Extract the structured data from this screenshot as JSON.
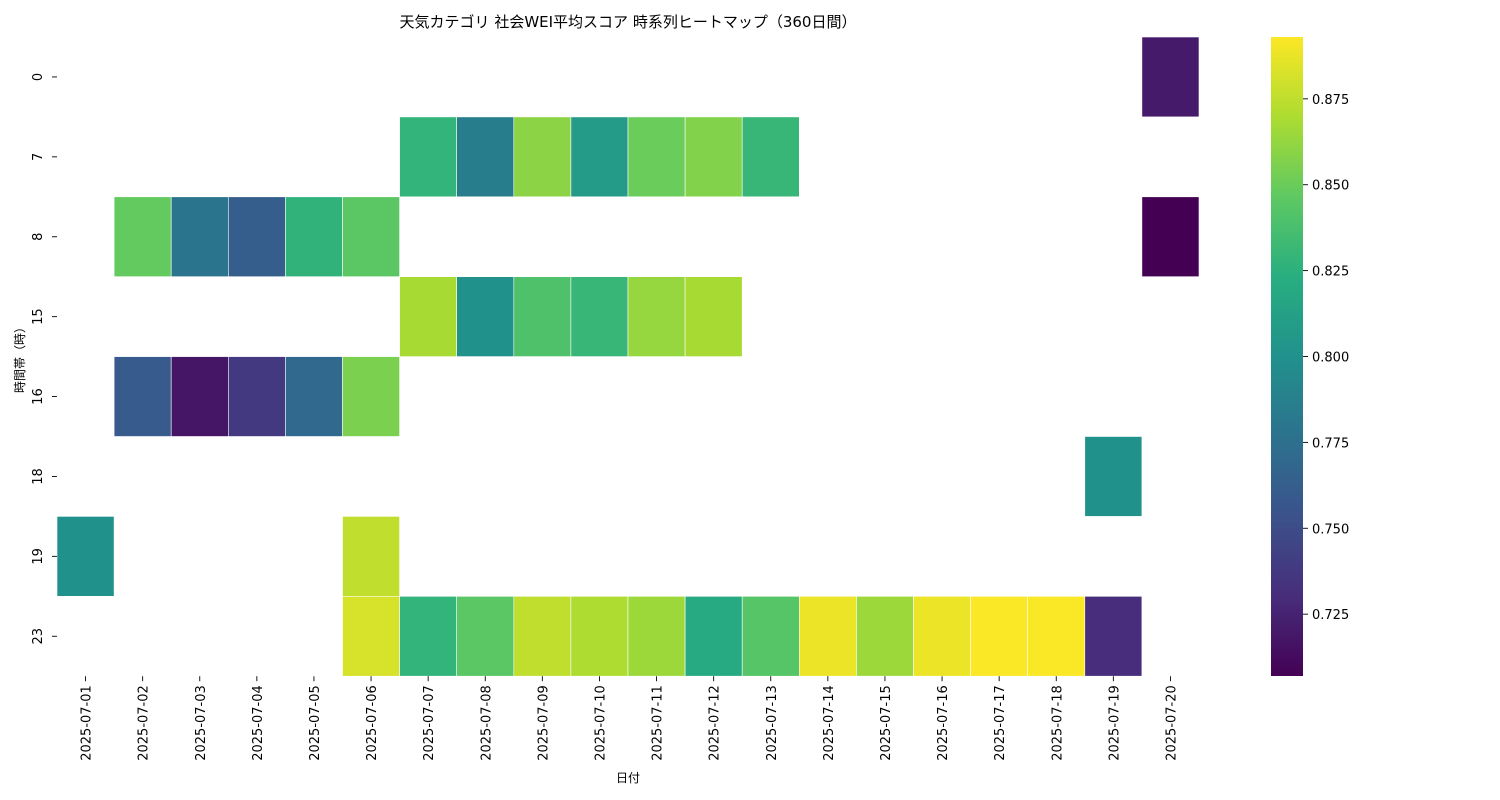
{
  "chart_data": {
    "type": "heatmap",
    "title": "天気カテゴリ 社会WEI平均スコア 時系列ヒートマップ（360日間）",
    "xlabel": "日付",
    "ylabel": "時間帯（時）",
    "x_categories": [
      "2025-07-01",
      "2025-07-02",
      "2025-07-03",
      "2025-07-04",
      "2025-07-05",
      "2025-07-06",
      "2025-07-07",
      "2025-07-08",
      "2025-07-09",
      "2025-07-10",
      "2025-07-11",
      "2025-07-12",
      "2025-07-13",
      "2025-07-14",
      "2025-07-15",
      "2025-07-16",
      "2025-07-17",
      "2025-07-18",
      "2025-07-19",
      "2025-07-20"
    ],
    "y_categories": [
      "0",
      "7",
      "8",
      "15",
      "16",
      "18",
      "19",
      "23"
    ],
    "values": [
      [
        null,
        null,
        null,
        null,
        null,
        null,
        null,
        null,
        null,
        null,
        null,
        null,
        null,
        null,
        null,
        null,
        null,
        null,
        null,
        0.72
      ],
      [
        null,
        null,
        null,
        null,
        null,
        null,
        0.828,
        0.785,
        0.86,
        0.808,
        0.85,
        0.857,
        0.83,
        null,
        null,
        null,
        null,
        null,
        null,
        null
      ],
      [
        null,
        0.848,
        0.778,
        0.762,
        0.827,
        0.845,
        null,
        null,
        null,
        null,
        null,
        null,
        null,
        null,
        null,
        null,
        null,
        null,
        null,
        0.707
      ],
      [
        null,
        null,
        null,
        null,
        null,
        null,
        0.868,
        0.8,
        0.84,
        0.83,
        0.863,
        0.868,
        null,
        null,
        null,
        null,
        null,
        null,
        null,
        null
      ],
      [
        null,
        0.76,
        0.718,
        0.738,
        0.77,
        0.855,
        null,
        null,
        null,
        null,
        null,
        null,
        null,
        null,
        null,
        null,
        null,
        null,
        null,
        null
      ],
      [
        null,
        null,
        null,
        null,
        null,
        null,
        null,
        null,
        null,
        null,
        null,
        null,
        null,
        null,
        null,
        null,
        null,
        null,
        0.8,
        null
      ],
      [
        0.8,
        null,
        null,
        null,
        null,
        0.875,
        null,
        null,
        null,
        null,
        null,
        null,
        null,
        null,
        null,
        null,
        null,
        null,
        null,
        null
      ],
      [
        null,
        null,
        null,
        null,
        null,
        0.882,
        0.828,
        0.845,
        0.875,
        0.87,
        0.865,
        0.82,
        0.843,
        0.888,
        0.865,
        0.888,
        0.892,
        0.892,
        0.73,
        null
      ]
    ],
    "vmin": 0.707,
    "vmax": 0.893,
    "colormap": "viridis",
    "colorbar_ticks": [
      0.725,
      0.75,
      0.775,
      0.8,
      0.825,
      0.85,
      0.875
    ],
    "colorbar_tick_labels": [
      "0.725",
      "0.750",
      "0.775",
      "0.800",
      "0.825",
      "0.850",
      "0.875"
    ]
  }
}
